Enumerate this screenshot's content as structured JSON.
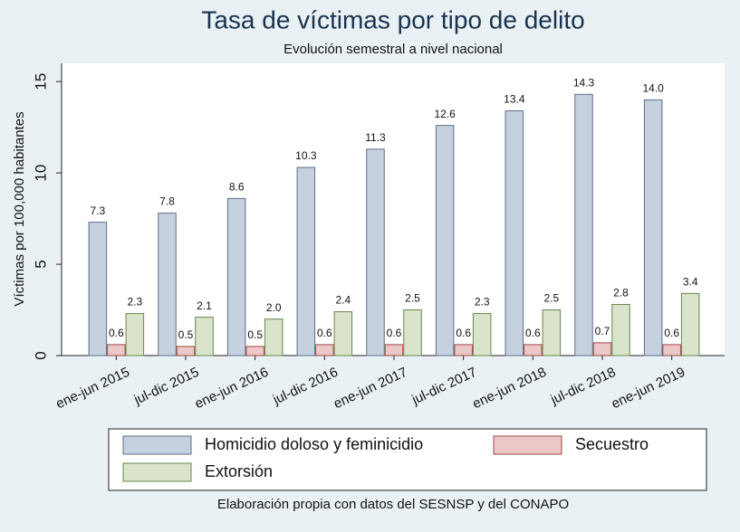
{
  "chart_data": {
    "type": "bar",
    "title": "Tasa de víctimas por tipo de delito",
    "subtitle": "Evolución semestral a nivel nacional",
    "y_label": "Víctimas por 100,000 habitantes",
    "note": "Elaboración propia con datos del SESNSP y del CONAPO",
    "categories": [
      "ene-jun 2015",
      "jul-dic 2015",
      "ene-jun 2016",
      "jul-dic 2016",
      "ene-jun 2017",
      "jul-dic 2017",
      "ene-jun 2018",
      "jul-dic 2018",
      "ene-jun 2019"
    ],
    "series": [
      {
        "name": "Homicidio doloso y feminicidio",
        "color": "#c6d1e0",
        "values": [
          7.3,
          7.8,
          8.6,
          10.3,
          11.3,
          12.6,
          13.4,
          14.3,
          14.0
        ],
        "value_labels": [
          "7.3",
          "7.8",
          "8.6",
          "10.3",
          "11.3",
          "12.6",
          "13.4",
          "14.3",
          "14.0"
        ]
      },
      {
        "name": "Secuestro",
        "color": "#ebc7c7",
        "values": [
          0.6,
          0.5,
          0.5,
          0.6,
          0.6,
          0.6,
          0.6,
          0.7,
          0.6
        ]
      },
      {
        "name": "Extorsión",
        "color": "#d9e4cb",
        "values": [
          2.3,
          2.1,
          2.0,
          2.4,
          2.5,
          2.3,
          2.5,
          2.8,
          3.4
        ],
        "value_labels": [
          "2.3",
          "2.1",
          "2.0",
          "2.4",
          "2.5",
          "2.3",
          "2.5",
          "2.8",
          "3.4"
        ]
      }
    ],
    "ylim": [
      0,
      16
    ],
    "yticks": [
      0,
      5,
      10,
      15
    ],
    "grid": false,
    "legend": "bottom"
  }
}
